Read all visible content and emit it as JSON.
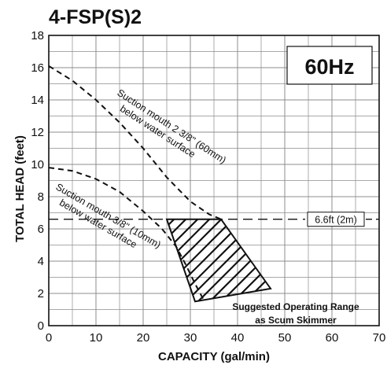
{
  "chart_data": {
    "type": "line",
    "title": "4-FSP(S)2",
    "frequency_label": "60Hz",
    "xlabel": "CAPACITY (gal/min)",
    "ylabel": "TOTAL HEAD (feet)",
    "xlim": [
      0,
      70
    ],
    "ylim": [
      0,
      18
    ],
    "x_ticks": [
      0,
      10,
      20,
      30,
      40,
      50,
      60,
      70
    ],
    "y_ticks": [
      0,
      2,
      4,
      6,
      8,
      10,
      12,
      14,
      16,
      18
    ],
    "grid": true,
    "series": [
      {
        "label": "Suction mouth 2 3/8\" (60mm) below water surface",
        "style": "dashed",
        "x": [
          0,
          5,
          10,
          15,
          20,
          25,
          30,
          34,
          36.5
        ],
        "y": [
          16.1,
          15.2,
          14.0,
          12.6,
          11.0,
          9.2,
          7.7,
          6.9,
          6.6
        ]
      },
      {
        "label": "Suction mouth 3/8\" (10mm) below water surface",
        "style": "dashed",
        "x": [
          0,
          5,
          10,
          15,
          20,
          24,
          27,
          29,
          31,
          33
        ],
        "y": [
          9.8,
          9.6,
          9.1,
          8.3,
          7.1,
          6.0,
          4.9,
          3.8,
          2.6,
          1.5
        ]
      }
    ],
    "reference_line": {
      "y": 6.6,
      "label": "6.6ft (2m)",
      "style": "dashed"
    },
    "shaded_region": {
      "label_line1": "Suggested Operating Range",
      "label_line2": "as Scum Skimmer",
      "pattern": "diagonal hatch",
      "x": [
        25,
        36.5,
        47,
        31
      ],
      "y": [
        6.6,
        6.6,
        2.3,
        1.5
      ]
    },
    "annotations": [
      {
        "line1": "Suction mouth 2 3/8\" (60mm)",
        "line2": "below water surface"
      },
      {
        "line1": "Suction mouth 3/8\" (10mm)",
        "line2": "below water surface"
      }
    ]
  }
}
